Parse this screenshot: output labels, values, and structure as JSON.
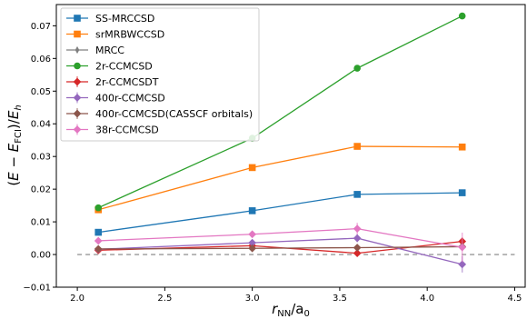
{
  "chart_data": {
    "type": "line",
    "xlabel": "r_NN/a_0",
    "ylabel": "(E − E_FCI)/E_h",
    "xlim": [
      1.88,
      4.56
    ],
    "ylim": [
      -0.01,
      0.0765
    ],
    "xticks": [
      2.0,
      2.5,
      3.0,
      3.5,
      4.0,
      4.5
    ],
    "xtick_labels": [
      "2.0",
      "2.5",
      "3.0",
      "3.5",
      "4.0",
      "4.5"
    ],
    "yticks": [
      -0.01,
      0.0,
      0.01,
      0.02,
      0.03,
      0.04,
      0.05,
      0.06,
      0.07
    ],
    "ytick_labels": [
      "−0.01",
      "0.00",
      "0.01",
      "0.02",
      "0.03",
      "0.04",
      "0.05",
      "0.06",
      "0.07"
    ],
    "reference_line": {
      "y": 0.0,
      "style": "dashed",
      "color": "#808080"
    },
    "legend": {
      "placement": "top-left"
    },
    "series": [
      {
        "name": "SS-MRCCSD",
        "color": "#1f77b4",
        "marker": "square",
        "x": [
          2.12,
          3.0,
          3.6,
          4.2
        ],
        "y": [
          0.0068,
          0.0134,
          0.0184,
          0.0189
        ]
      },
      {
        "name": "srMRBWCCSD",
        "color": "#ff7f0e",
        "marker": "square",
        "x": [
          2.12,
          3.0,
          3.6,
          4.2
        ],
        "y": [
          0.0137,
          0.0266,
          0.0331,
          0.0329
        ]
      },
      {
        "name": "MRCC",
        "color": "#7f7f7f",
        "marker": "thin_diamond",
        "x": [],
        "y": []
      },
      {
        "name": "2r-CCMCSD",
        "color": "#2ca02c",
        "marker": "circle",
        "x": [
          2.12,
          3.0,
          3.6,
          4.2
        ],
        "y": [
          0.0143,
          0.0356,
          0.057,
          0.073
        ]
      },
      {
        "name": "2r-CCMCSDT",
        "color": "#d62728",
        "marker": "diamond",
        "x": [
          2.12,
          3.0,
          3.6,
          4.2
        ],
        "y": [
          0.0013,
          0.0027,
          0.0004,
          0.004
        ],
        "yerr": [
          0.0003,
          0.0004,
          0.0005,
          0.0012
        ]
      },
      {
        "name": "400r-CCMCSD",
        "color": "#9467bd",
        "marker": "diamond",
        "x": [
          2.12,
          3.0,
          3.6,
          4.2
        ],
        "y": [
          0.0016,
          0.0036,
          0.005,
          -0.003
        ],
        "yerr": [
          0.0003,
          0.0006,
          0.0012,
          0.0025
        ]
      },
      {
        "name": "400r-CCMCSD(CASSCF orbitals)",
        "color": "#8c564b",
        "marker": "diamond",
        "x": [
          2.12,
          3.0,
          3.6,
          4.2
        ],
        "y": [
          0.0017,
          0.0019,
          0.0021,
          0.0024
        ],
        "yerr": [
          0.0002,
          0.0003,
          0.0003,
          0.0004
        ]
      },
      {
        "name": "38r-CCMCSD",
        "color": "#e377c2",
        "marker": "diamond",
        "x": [
          2.12,
          3.0,
          3.6,
          4.2
        ],
        "y": [
          0.0042,
          0.0062,
          0.0079,
          0.0022
        ],
        "yerr": [
          0.0004,
          0.0006,
          0.0018,
          0.0045
        ]
      }
    ]
  }
}
